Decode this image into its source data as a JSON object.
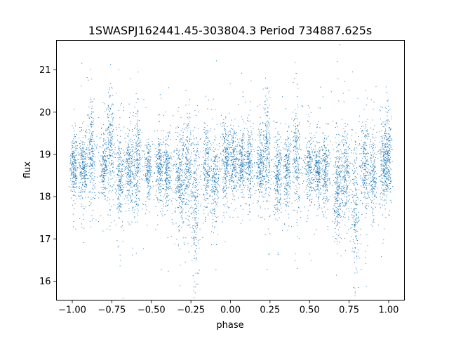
{
  "chart_data": {
    "type": "scatter",
    "title": "1SWASPJ162441.45-303804.3 Period 734887.625s",
    "xlabel": "phase",
    "ylabel": "flux",
    "xlim": [
      -1.1,
      1.1
    ],
    "ylim": [
      15.55,
      21.7
    ],
    "xticks": [
      -1.0,
      -0.75,
      -0.5,
      -0.25,
      0.0,
      0.25,
      0.5,
      0.75,
      1.0
    ],
    "xtick_labels": [
      "−1.00",
      "−0.75",
      "−0.50",
      "−0.25",
      "0.00",
      "0.25",
      "0.50",
      "0.75",
      "1.00"
    ],
    "yticks": [
      16,
      17,
      18,
      19,
      20,
      21
    ],
    "ytick_labels": [
      "16",
      "17",
      "18",
      "19",
      "20",
      "21"
    ],
    "grid": false,
    "marker_color": "#1f77b4",
    "series": [
      {
        "clusters": [
          {
            "x": -0.99,
            "y": 18.7,
            "sd": 0.35,
            "n": 220,
            "w": 0.012
          },
          {
            "x": -0.93,
            "y": 18.7,
            "sd": 0.4,
            "n": 230,
            "w": 0.014
          },
          {
            "x": -0.88,
            "y": 19.1,
            "sd": 0.55,
            "n": 200,
            "w": 0.012
          },
          {
            "x": -0.8,
            "y": 18.75,
            "sd": 0.35,
            "n": 170,
            "w": 0.012
          },
          {
            "x": -0.76,
            "y": 19.3,
            "sd": 0.65,
            "n": 200,
            "w": 0.012
          },
          {
            "x": -0.7,
            "y": 18.45,
            "sd": 0.45,
            "n": 200,
            "w": 0.012
          },
          {
            "x": -0.64,
            "y": 18.6,
            "sd": 0.4,
            "n": 210,
            "w": 0.013
          },
          {
            "x": -0.59,
            "y": 18.9,
            "sd": 0.6,
            "n": 200,
            "w": 0.013
          },
          {
            "x": -0.52,
            "y": 18.7,
            "sd": 0.35,
            "n": 170,
            "w": 0.012
          },
          {
            "x": -0.45,
            "y": 18.65,
            "sd": 0.35,
            "n": 210,
            "w": 0.013
          },
          {
            "x": -0.4,
            "y": 18.6,
            "sd": 0.4,
            "n": 200,
            "w": 0.012
          },
          {
            "x": -0.32,
            "y": 18.3,
            "sd": 0.55,
            "n": 260,
            "w": 0.015
          },
          {
            "x": -0.27,
            "y": 18.7,
            "sd": 0.55,
            "n": 210,
            "w": 0.013
          },
          {
            "x": -0.22,
            "y": 17.8,
            "sd": 0.9,
            "n": 200,
            "w": 0.012
          },
          {
            "x": -0.15,
            "y": 18.7,
            "sd": 0.45,
            "n": 200,
            "w": 0.012
          },
          {
            "x": -0.1,
            "y": 18.4,
            "sd": 0.5,
            "n": 180,
            "w": 0.012
          },
          {
            "x": -0.03,
            "y": 18.9,
            "sd": 0.45,
            "n": 230,
            "w": 0.014
          },
          {
            "x": 0.02,
            "y": 18.8,
            "sd": 0.4,
            "n": 220,
            "w": 0.014
          },
          {
            "x": 0.07,
            "y": 18.8,
            "sd": 0.35,
            "n": 200,
            "w": 0.012
          },
          {
            "x": 0.12,
            "y": 18.8,
            "sd": 0.4,
            "n": 190,
            "w": 0.012
          },
          {
            "x": 0.19,
            "y": 18.75,
            "sd": 0.35,
            "n": 190,
            "w": 0.012
          },
          {
            "x": 0.23,
            "y": 19.2,
            "sd": 0.6,
            "n": 190,
            "w": 0.012
          },
          {
            "x": 0.3,
            "y": 18.5,
            "sd": 0.45,
            "n": 200,
            "w": 0.012
          },
          {
            "x": 0.36,
            "y": 18.65,
            "sd": 0.4,
            "n": 200,
            "w": 0.012
          },
          {
            "x": 0.42,
            "y": 18.95,
            "sd": 0.55,
            "n": 200,
            "w": 0.013
          },
          {
            "x": 0.5,
            "y": 18.7,
            "sd": 0.35,
            "n": 180,
            "w": 0.012
          },
          {
            "x": 0.55,
            "y": 18.6,
            "sd": 0.35,
            "n": 200,
            "w": 0.012
          },
          {
            "x": 0.6,
            "y": 18.6,
            "sd": 0.4,
            "n": 200,
            "w": 0.012
          },
          {
            "x": 0.68,
            "y": 18.2,
            "sd": 0.55,
            "n": 240,
            "w": 0.014
          },
          {
            "x": 0.73,
            "y": 18.6,
            "sd": 0.55,
            "n": 200,
            "w": 0.013
          },
          {
            "x": 0.79,
            "y": 17.7,
            "sd": 0.85,
            "n": 190,
            "w": 0.012
          },
          {
            "x": 0.85,
            "y": 18.8,
            "sd": 0.55,
            "n": 200,
            "w": 0.012
          },
          {
            "x": 0.9,
            "y": 18.5,
            "sd": 0.45,
            "n": 170,
            "w": 0.012
          },
          {
            "x": 0.97,
            "y": 18.8,
            "sd": 0.45,
            "n": 210,
            "w": 0.013
          },
          {
            "x": 1.0,
            "y": 18.9,
            "sd": 0.5,
            "n": 200,
            "w": 0.01
          }
        ],
        "background_points": 900,
        "background_x_range": [
          -1.0,
          1.0
        ],
        "background_y_mean": 18.65,
        "background_y_sd": 0.65
      }
    ]
  }
}
